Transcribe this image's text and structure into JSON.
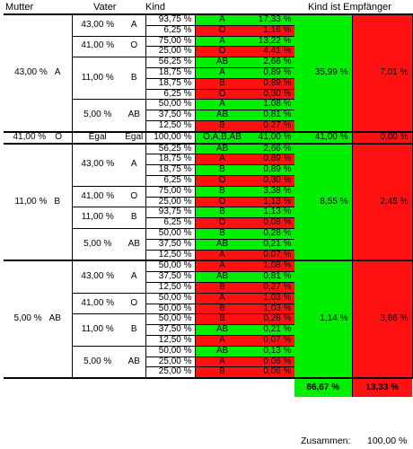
{
  "headers": {
    "mutter": "Mutter",
    "vater": "Vater",
    "kind": "Kind",
    "empfaenger": "Kind ist Empfänger"
  },
  "blocks": [
    {
      "m_pct": "43,00 %",
      "m_type": "A",
      "g_pct": "35,99 %",
      "r_pct": "7,01 %",
      "fathers": [
        {
          "pct": "43,00 %",
          "type": "A",
          "kids": [
            [
              "93,75 %",
              "A",
              "17,33 %",
              "g"
            ],
            [
              "6,25 %",
              "O",
              "1,16 %",
              "r"
            ]
          ]
        },
        {
          "pct": "41,00 %",
          "type": "O",
          "kids": [
            [
              "75,00 %",
              "A",
              "13,22 %",
              "g"
            ],
            [
              "25,00 %",
              "O",
              "4,41 %",
              "r"
            ]
          ]
        },
        {
          "pct": "11,00 %",
          "type": "B",
          "kids": [
            [
              "56,25 %",
              "AB",
              "2,66 %",
              "g"
            ],
            [
              "18,75 %",
              "A",
              "0,89 %",
              "g"
            ],
            [
              "18,75 %",
              "B",
              "0,89 %",
              "r"
            ],
            [
              "6,25 %",
              "O",
              "0,30 %",
              "r"
            ]
          ]
        },
        {
          "pct": "5,00 %",
          "type": "AB",
          "kids": [
            [
              "50,00 %",
              "A",
              "1,08 %",
              "g"
            ],
            [
              "37,50 %",
              "AB",
              "0,81 %",
              "g"
            ],
            [
              "12,50 %",
              "B",
              "0,27 %",
              "r"
            ]
          ]
        }
      ]
    },
    {
      "m_pct": "41,00 %",
      "m_type": "O",
      "single": true,
      "f_pct": "Egal",
      "f_type": "Egal",
      "k_pct": "100,00 %",
      "k_type": "O,A,B,AB",
      "k_val": "41,00 %",
      "g_pct": "41,00 %",
      "r_pct": "0,00 %"
    },
    {
      "m_pct": "11,00 %",
      "m_type": "B",
      "g_pct": "8,55 %",
      "r_pct": "2,45 %",
      "fathers": [
        {
          "pct": "43,00 %",
          "type": "A",
          "kids": [
            [
              "56,25 %",
              "AB",
              "2,66 %",
              "g"
            ],
            [
              "18,75 %",
              "A",
              "0,89 %",
              "r"
            ],
            [
              "18,75 %",
              "B",
              "0,89 %",
              "g"
            ],
            [
              "6,25 %",
              "O",
              "0,30 %",
              "r"
            ]
          ]
        },
        {
          "pct": "41,00 %",
          "type": "O",
          "kids": [
            [
              "75,00 %",
              "B",
              "3,38 %",
              "g"
            ],
            [
              "25,00 %",
              "O",
              "1,13 %",
              "r"
            ]
          ]
        },
        {
          "pct": "11,00 %",
          "type": "B",
          "kids": [
            [
              "93,75 %",
              "B",
              "1,13 %",
              "g"
            ],
            [
              "6,25 %",
              "O",
              "0,08 %",
              "r"
            ]
          ]
        },
        {
          "pct": "5,00 %",
          "type": "AB",
          "kids": [
            [
              "50,00 %",
              "B",
              "0,28 %",
              "g"
            ],
            [
              "37,50 %",
              "AB",
              "0,21 %",
              "g"
            ],
            [
              "12,50 %",
              "A",
              "0,07 %",
              "r"
            ]
          ]
        }
      ]
    },
    {
      "m_pct": "5,00 %",
      "m_type": "AB",
      "g_pct": "1,14 %",
      "r_pct": "3,86 %",
      "fathers": [
        {
          "pct": "43,00 %",
          "type": "A",
          "kids": [
            [
              "50,00 %",
              "A",
              "1,08 %",
              "r"
            ],
            [
              "37,50 %",
              "AB",
              "0,81 %",
              "g"
            ],
            [
              "12,50 %",
              "B",
              "0,27 %",
              "r"
            ]
          ]
        },
        {
          "pct": "41,00 %",
          "type": "O",
          "kids": [
            [
              "50,00 %",
              "A",
              "1,03 %",
              "r"
            ],
            [
              "50,00 %",
              "B",
              "1,03 %",
              "r"
            ]
          ]
        },
        {
          "pct": "11,00 %",
          "type": "B",
          "kids": [
            [
              "50,00 %",
              "B",
              "0,28 %",
              "r"
            ],
            [
              "37,50 %",
              "AB",
              "0,21 %",
              "g"
            ],
            [
              "12,50 %",
              "A",
              "0,07 %",
              "r"
            ]
          ]
        },
        {
          "pct": "5,00 %",
          "type": "AB",
          "kids": [
            [
              "50,00 %",
              "AB",
              "0,13 %",
              "g"
            ],
            [
              "25,00 %",
              "A",
              "0,06 %",
              "r"
            ],
            [
              "25,00 %",
              "B",
              "0,06 %",
              "r"
            ]
          ]
        }
      ]
    }
  ],
  "totals": {
    "green": "86,67 %",
    "red": "13,33 %",
    "sum_label": "Zusammen:",
    "sum_value": "100,00 %"
  },
  "colors": {
    "green": "#00ee00",
    "red": "#ff1111"
  }
}
